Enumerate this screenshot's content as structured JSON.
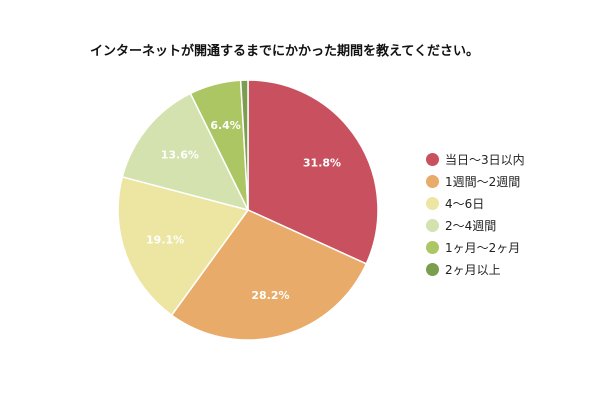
{
  "chart_data": {
    "type": "pie",
    "title": "インターネットが開通するまでにかかった期間を教えてください。",
    "legend_position": "right",
    "slices": [
      {
        "label": "当日〜3日以内",
        "value": 31.8,
        "value_label": "31.8%",
        "color": "#c9505e"
      },
      {
        "label": "1週間〜2週間",
        "value": 28.2,
        "value_label": "28.2%",
        "color": "#e8ab69"
      },
      {
        "label": "4〜6日",
        "value": 19.1,
        "value_label": "19.1%",
        "color": "#ede5a2"
      },
      {
        "label": "2〜4週間",
        "value": 13.6,
        "value_label": "13.6%",
        "color": "#d3e2ae"
      },
      {
        "label": "1ヶ月〜2ヶ月",
        "value": 6.4,
        "value_label": "6.4%",
        "color": "#abc663"
      },
      {
        "label": "2ヶ月以上",
        "value": 0.9,
        "value_label": "",
        "color": "#7a9e4e"
      }
    ]
  }
}
